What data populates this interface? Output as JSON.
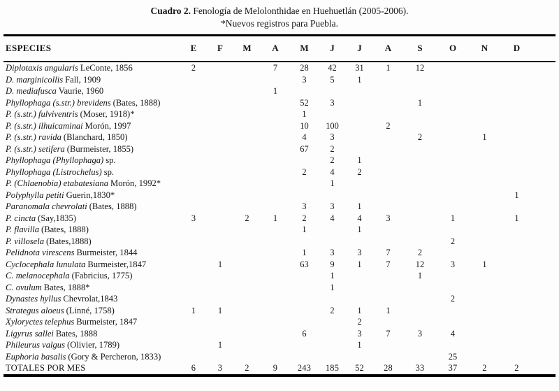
{
  "caption": {
    "label": "Cuadro 2.",
    "text": "Fenología de Melolonthidae en Huehuetlán (2005-2006).",
    "note": "*Nuevos registros para Puebla."
  },
  "table": {
    "species_header": "ESPECIES",
    "month_headers": [
      "E",
      "F",
      "M",
      "A",
      "M",
      "J",
      "J",
      "A",
      "S",
      "O",
      "N",
      "D"
    ],
    "rows": [
      {
        "italic": "Diplotaxis angularis",
        "rest": "LeConte, 1856",
        "values": [
          "2",
          "",
          "",
          "7",
          "28",
          "42",
          "31",
          "1",
          "12",
          "",
          "",
          ""
        ]
      },
      {
        "italic": "D. marginicollis",
        "rest": "Fall, 1909",
        "values": [
          "",
          "",
          "",
          "",
          "3",
          "5",
          "1",
          "",
          "",
          "",
          "",
          ""
        ]
      },
      {
        "italic": "D. mediafusca",
        "rest": "Vaurie, 1960",
        "values": [
          "",
          "",
          "",
          "1",
          "",
          "",
          "",
          "",
          "",
          "",
          "",
          ""
        ]
      },
      {
        "italic": "Phyllophaga (s.str.) brevidens",
        "rest": "(Bates, 1888)",
        "values": [
          "",
          "",
          "",
          "",
          "52",
          "3",
          "",
          "",
          "1",
          "",
          "",
          ""
        ]
      },
      {
        "italic": "P. (s.str.) fulviventris",
        "rest": "(Moser, 1918)*",
        "values": [
          "",
          "",
          "",
          "",
          "1",
          "",
          "",
          "",
          "",
          "",
          "",
          ""
        ]
      },
      {
        "italic": "P. (s.str.) ilhuicaminai",
        "rest": "Morón, 1997",
        "values": [
          "",
          "",
          "",
          "",
          "10",
          "100",
          "",
          "2",
          "",
          "",
          "",
          ""
        ]
      },
      {
        "italic": "P. (s.str.) ravida",
        "rest": "(Blanchard, 1850)",
        "values": [
          "",
          "",
          "",
          "",
          "4",
          "3",
          "",
          "",
          "2",
          "",
          "1",
          ""
        ]
      },
      {
        "italic": "P. (s.str.) setifera",
        "rest": "(Burmeister, 1855)",
        "values": [
          "",
          "",
          "",
          "",
          "67",
          "2",
          "",
          "",
          "",
          "",
          "",
          ""
        ]
      },
      {
        "italic": "Phyllophaga (Phyllophaga)",
        "rest": "sp.",
        "values": [
          "",
          "",
          "",
          "",
          "",
          "2",
          "1",
          "",
          "",
          "",
          "",
          ""
        ]
      },
      {
        "italic": "Phyllophaga (Listrochelus)",
        "rest": "sp.",
        "values": [
          "",
          "",
          "",
          "",
          "2",
          "4",
          "2",
          "",
          "",
          "",
          "",
          ""
        ]
      },
      {
        "italic": "P. (Chlaenobia) etabatesiana",
        "rest": "Morón, 1992*",
        "values": [
          "",
          "",
          "",
          "",
          "",
          "1",
          "",
          "",
          "",
          "",
          "",
          ""
        ]
      },
      {
        "italic": "Polyphylla petiti",
        "rest": "Guerin,1830*",
        "values": [
          "",
          "",
          "",
          "",
          "",
          "",
          "",
          "",
          "",
          "",
          "",
          "1"
        ]
      },
      {
        "italic": "Paranomala chevrolati",
        "rest": "(Bates, 1888)",
        "values": [
          "",
          "",
          "",
          "",
          "3",
          "3",
          "1",
          "",
          "",
          "",
          "",
          ""
        ]
      },
      {
        "italic": "P. cincta",
        "rest": "(Say,1835)",
        "values": [
          "3",
          "",
          "2",
          "1",
          "2",
          "4",
          "4",
          "3",
          "",
          "1",
          "",
          "1"
        ]
      },
      {
        "italic": "P. flavilla",
        "rest": "(Bates, 1888)",
        "values": [
          "",
          "",
          "",
          "",
          "1",
          "",
          "1",
          "",
          "",
          "",
          "",
          ""
        ]
      },
      {
        "italic": "P. villosela",
        "rest": "(Bates,1888)",
        "values": [
          "",
          "",
          "",
          "",
          "",
          "",
          "",
          "",
          "",
          "2",
          "",
          ""
        ]
      },
      {
        "italic": "Pelidnota virescens",
        "rest": "Burmeister, 1844",
        "values": [
          "",
          "",
          "",
          "",
          "1",
          "3",
          "3",
          "7",
          "2",
          "",
          "",
          ""
        ]
      },
      {
        "italic": "Cyclocephala lunulata",
        "rest": "Burmeister,1847",
        "values": [
          "",
          "1",
          "",
          "",
          "63",
          "9",
          "1",
          "7",
          "12",
          "3",
          "1",
          ""
        ]
      },
      {
        "italic": "C. melanocephala",
        "rest": "(Fabricius, 1775)",
        "values": [
          "",
          "",
          "",
          "",
          "",
          "1",
          "",
          "",
          "1",
          "",
          "",
          ""
        ]
      },
      {
        "italic": "C. ovulum",
        "rest": "Bates, 1888*",
        "values": [
          "",
          "",
          "",
          "",
          "",
          "1",
          "",
          "",
          "",
          "",
          "",
          ""
        ]
      },
      {
        "italic": "Dynastes hyllus",
        "rest": "Chevrolat,1843",
        "values": [
          "",
          "",
          "",
          "",
          "",
          "",
          "",
          "",
          "",
          "2",
          "",
          ""
        ]
      },
      {
        "italic": "Strategus aloeus",
        "rest": "(Linné, 1758)",
        "values": [
          "1",
          "1",
          "",
          "",
          "",
          "2",
          "1",
          "1",
          "",
          "",
          "",
          ""
        ]
      },
      {
        "italic": "Xyloryctes telephus",
        "rest": "Burmeister, 1847",
        "values": [
          "",
          "",
          "",
          "",
          "",
          "",
          "2",
          "",
          "",
          "",
          "",
          ""
        ]
      },
      {
        "italic": "Ligyrus sallei",
        "rest": "Bates, 1888",
        "values": [
          "",
          "",
          "",
          "",
          "6",
          "",
          "3",
          "7",
          "3",
          "4",
          "",
          ""
        ]
      },
      {
        "italic": "Phileurus valgus",
        "rest": "(Olivier, 1789)",
        "values": [
          "",
          "1",
          "",
          "",
          "",
          "",
          "1",
          "",
          "",
          "",
          "",
          ""
        ]
      },
      {
        "italic": "Euphoria basalis",
        "rest": "(Gory & Percheron, 1833)",
        "values": [
          "",
          "",
          "",
          "",
          "",
          "",
          "",
          "",
          "",
          "25",
          "",
          ""
        ]
      },
      {
        "italic": "",
        "rest": "TOTALES POR MES",
        "total": true,
        "values": [
          "6",
          "3",
          "2",
          "9",
          "243",
          "185",
          "52",
          "28",
          "33",
          "37",
          "2",
          "2"
        ]
      }
    ]
  },
  "colors": {
    "rule": "#000000",
    "text": "#161616",
    "background": "#fdfdfd"
  }
}
